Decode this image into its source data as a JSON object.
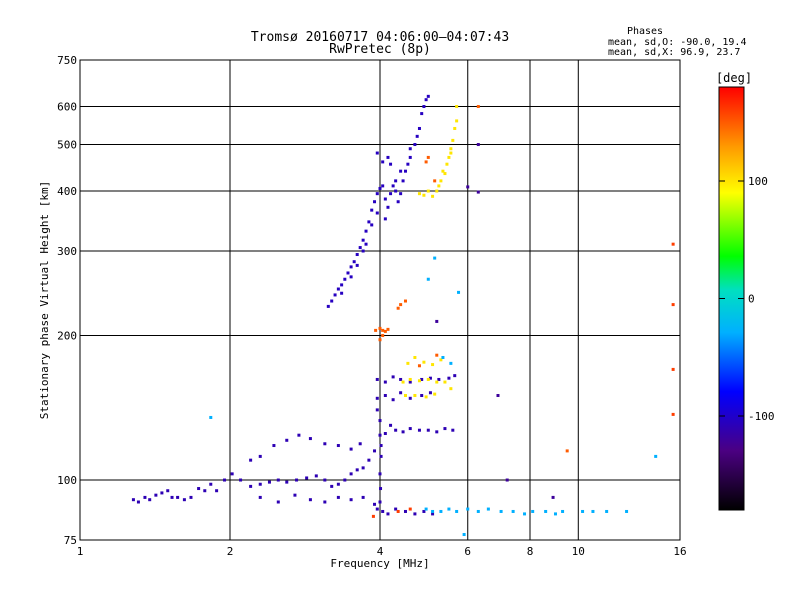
{
  "chart_data": {
    "type": "scatter",
    "title": "Tromsø 20160717 04:06:00–04:07:43",
    "subtitle": "RwPretec (8p)",
    "xlabel": "Frequency [MHz]",
    "ylabel": "Stationary phase Virtual Height [km]",
    "x_scale": "log",
    "y_scale": "log",
    "xlim": [
      1,
      16
    ],
    "ylim": [
      75,
      750
    ],
    "x_ticks": [
      1,
      2,
      4,
      6,
      8,
      10,
      16
    ],
    "y_ticks": [
      75,
      100,
      200,
      300,
      400,
      500,
      600,
      750
    ],
    "x_gridlines": [
      2,
      4,
      6,
      8,
      10
    ],
    "y_gridlines": [
      100,
      200,
      300,
      400,
      500,
      600
    ],
    "grid": true,
    "legend": {
      "heading": "Phases",
      "lines": [
        "mean, sd,O: -90.0, 19.4",
        "mean, sd,X:  96.9, 23.7"
      ],
      "placement": "top-right"
    },
    "colorbar": {
      "label": "[deg]",
      "range": [
        -180,
        180
      ],
      "ticks": [
        100,
        0,
        -100
      ],
      "colormap": "rainbow"
    },
    "series": [
      {
        "points": [
          [
            1.28,
            91
          ],
          [
            1.31,
            90
          ],
          [
            1.35,
            92
          ],
          [
            1.38,
            91
          ],
          [
            1.42,
            93
          ],
          [
            1.46,
            94
          ],
          [
            1.5,
            95
          ],
          [
            1.53,
            92
          ],
          [
            1.57,
            92
          ],
          [
            1.62,
            91
          ],
          [
            1.67,
            92
          ],
          [
            1.73,
            96
          ],
          [
            1.78,
            95
          ],
          [
            1.83,
            98
          ],
          [
            1.88,
            95
          ],
          [
            1.95,
            100
          ],
          [
            2.02,
            103
          ],
          [
            2.1,
            100
          ],
          [
            2.2,
            97
          ],
          [
            2.3,
            98
          ],
          [
            2.4,
            99
          ],
          [
            2.5,
            100
          ],
          [
            2.6,
            99
          ],
          [
            2.72,
            100
          ],
          [
            2.85,
            101
          ],
          [
            2.98,
            102
          ],
          [
            3.1,
            100
          ],
          [
            3.2,
            97
          ],
          [
            3.3,
            98
          ],
          [
            3.4,
            100
          ],
          [
            3.5,
            103
          ],
          [
            3.6,
            105
          ],
          [
            3.7,
            106
          ],
          [
            3.8,
            110
          ],
          [
            3.9,
            115
          ],
          [
            4.02,
            118
          ],
          [
            4.1,
            125
          ],
          [
            4.2,
            130
          ],
          [
            4.3,
            127
          ],
          [
            4.45,
            126
          ],
          [
            4.6,
            128
          ],
          [
            4.8,
            127
          ],
          [
            5.0,
            127
          ],
          [
            5.2,
            126
          ],
          [
            5.4,
            128
          ],
          [
            5.6,
            127
          ],
          [
            2.3,
            92
          ],
          [
            2.5,
            90
          ],
          [
            2.7,
            93
          ],
          [
            2.9,
            91
          ],
          [
            3.1,
            90
          ],
          [
            3.3,
            92
          ],
          [
            3.5,
            91
          ],
          [
            3.7,
            92
          ],
          [
            3.9,
            89
          ],
          [
            2.2,
            110
          ],
          [
            2.3,
            112
          ],
          [
            2.45,
            118
          ],
          [
            2.6,
            121
          ],
          [
            2.75,
            124
          ],
          [
            2.9,
            122
          ],
          [
            3.1,
            119
          ],
          [
            3.3,
            118
          ],
          [
            3.5,
            116
          ],
          [
            3.65,
            119
          ],
          [
            3.95,
            87
          ],
          [
            4.05,
            86
          ],
          [
            4.15,
            85
          ],
          [
            4.3,
            87
          ],
          [
            4.5,
            86
          ],
          [
            4.7,
            85
          ],
          [
            4.9,
            86
          ],
          [
            5.1,
            85
          ],
          [
            3.95,
            148
          ],
          [
            4.1,
            150
          ],
          [
            4.25,
            147
          ],
          [
            4.4,
            152
          ],
          [
            4.6,
            148
          ],
          [
            4.85,
            150
          ],
          [
            5.05,
            152
          ],
          [
            3.95,
            162
          ],
          [
            4.1,
            160
          ],
          [
            4.25,
            164
          ],
          [
            4.4,
            162
          ],
          [
            4.6,
            160
          ],
          [
            4.85,
            162
          ],
          [
            5.05,
            163
          ],
          [
            5.25,
            162
          ],
          [
            5.5,
            163
          ],
          [
            5.65,
            165
          ],
          [
            3.95,
            140
          ],
          [
            4.0,
            133
          ],
          [
            4.0,
            124
          ],
          [
            4.02,
            112
          ],
          [
            4.0,
            103
          ],
          [
            4.01,
            96
          ],
          [
            4.0,
            90
          ]
        ],
        "phase": -110
      },
      {
        "points": [
          [
            3.15,
            230
          ],
          [
            3.2,
            236
          ],
          [
            3.25,
            243
          ],
          [
            3.3,
            250
          ],
          [
            3.35,
            255
          ],
          [
            3.4,
            262
          ],
          [
            3.45,
            270
          ],
          [
            3.5,
            278
          ],
          [
            3.55,
            285
          ],
          [
            3.6,
            295
          ],
          [
            3.65,
            305
          ],
          [
            3.7,
            316
          ],
          [
            3.75,
            330
          ],
          [
            3.8,
            345
          ],
          [
            3.85,
            365
          ],
          [
            3.9,
            380
          ],
          [
            3.95,
            395
          ],
          [
            4.0,
            405
          ],
          [
            4.05,
            410
          ],
          [
            4.1,
            385
          ],
          [
            4.15,
            370
          ],
          [
            4.2,
            395
          ],
          [
            4.25,
            410
          ],
          [
            4.3,
            400
          ],
          [
            4.35,
            380
          ],
          [
            4.4,
            395
          ],
          [
            4.45,
            420
          ],
          [
            4.5,
            440
          ],
          [
            4.55,
            455
          ],
          [
            4.6,
            470
          ],
          [
            4.7,
            500
          ],
          [
            4.8,
            540
          ],
          [
            4.85,
            580
          ],
          [
            4.9,
            600
          ],
          [
            4.95,
            620
          ],
          [
            5.0,
            630
          ],
          [
            4.05,
            460
          ],
          [
            4.15,
            470
          ],
          [
            3.95,
            480
          ],
          [
            4.2,
            455
          ],
          [
            3.35,
            245
          ],
          [
            3.5,
            265
          ],
          [
            3.6,
            280
          ],
          [
            3.7,
            300
          ],
          [
            3.75,
            310
          ],
          [
            3.85,
            340
          ],
          [
            3.95,
            360
          ],
          [
            4.1,
            350
          ],
          [
            4.3,
            420
          ],
          [
            4.4,
            440
          ],
          [
            4.6,
            490
          ],
          [
            4.75,
            520
          ]
        ],
        "phase": -105
      },
      {
        "points": [
          [
            5.1,
            390
          ],
          [
            5.2,
            400
          ],
          [
            5.25,
            410
          ],
          [
            5.3,
            420
          ],
          [
            5.4,
            435
          ],
          [
            5.45,
            455
          ],
          [
            5.5,
            470
          ],
          [
            5.55,
            490
          ],
          [
            5.6,
            510
          ],
          [
            5.65,
            540
          ],
          [
            5.7,
            560
          ],
          [
            5.7,
            600
          ],
          [
            5.55,
            480
          ],
          [
            5.35,
            440
          ],
          [
            4.8,
            395
          ],
          [
            4.9,
            392
          ],
          [
            5.0,
            400
          ],
          [
            4.55,
            175
          ],
          [
            4.7,
            180
          ],
          [
            4.9,
            176
          ],
          [
            5.1,
            174
          ],
          [
            5.3,
            178
          ],
          [
            4.45,
            160
          ],
          [
            4.6,
            162
          ],
          [
            4.8,
            161
          ],
          [
            5.0,
            162
          ],
          [
            5.2,
            160
          ],
          [
            4.5,
            150
          ],
          [
            4.7,
            150
          ],
          [
            4.95,
            149
          ],
          [
            5.15,
            151
          ],
          [
            5.4,
            160
          ],
          [
            5.55,
            155
          ]
        ],
        "phase": 100
      },
      {
        "points": [
          [
            3.92,
            205
          ],
          [
            4.0,
            207
          ],
          [
            4.05,
            205
          ],
          [
            4.1,
            204
          ],
          [
            4.15,
            206
          ],
          [
            4.0,
            196
          ],
          [
            4.05,
            200
          ],
          [
            4.4,
            232
          ],
          [
            4.5,
            236
          ],
          [
            4.35,
            228
          ],
          [
            5.0,
            470
          ],
          [
            5.15,
            420
          ],
          [
            4.95,
            460
          ],
          [
            6.3,
            600
          ],
          [
            9.5,
            115
          ],
          [
            5.2,
            182
          ],
          [
            4.8,
            173
          ]
        ],
        "phase": 150
      },
      {
        "points": [
          [
            4.95,
            87
          ],
          [
            5.1,
            86
          ],
          [
            5.3,
            86
          ],
          [
            5.5,
            87
          ],
          [
            5.7,
            86
          ],
          [
            6.0,
            87
          ],
          [
            6.3,
            86
          ],
          [
            6.6,
            87
          ],
          [
            7.0,
            86
          ],
          [
            7.4,
            86
          ],
          [
            7.8,
            85
          ],
          [
            8.1,
            86
          ],
          [
            8.6,
            86
          ],
          [
            9.0,
            85
          ],
          [
            9.3,
            86
          ],
          [
            10.2,
            86
          ],
          [
            10.7,
            86
          ],
          [
            11.4,
            86
          ],
          [
            12.5,
            86
          ],
          [
            14.3,
            112
          ],
          [
            5.55,
            175
          ],
          [
            5.35,
            180
          ],
          [
            1.83,
            135
          ],
          [
            5.0,
            262
          ],
          [
            5.15,
            290
          ],
          [
            5.75,
            246
          ],
          [
            5.9,
            77
          ]
        ],
        "phase": -30
      },
      {
        "points": [
          [
            6.3,
            500
          ],
          [
            6.3,
            398
          ],
          [
            6.0,
            408
          ],
          [
            5.2,
            214
          ],
          [
            6.9,
            150
          ],
          [
            7.2,
            100
          ],
          [
            8.9,
            92
          ]
        ],
        "phase": -120
      },
      {
        "points": [
          [
            15.5,
            310
          ],
          [
            15.5,
            232
          ],
          [
            15.5,
            170
          ],
          [
            15.5,
            137
          ],
          [
            3.88,
            84
          ],
          [
            4.35,
            86
          ],
          [
            4.6,
            87
          ]
        ],
        "phase": 160
      }
    ]
  }
}
